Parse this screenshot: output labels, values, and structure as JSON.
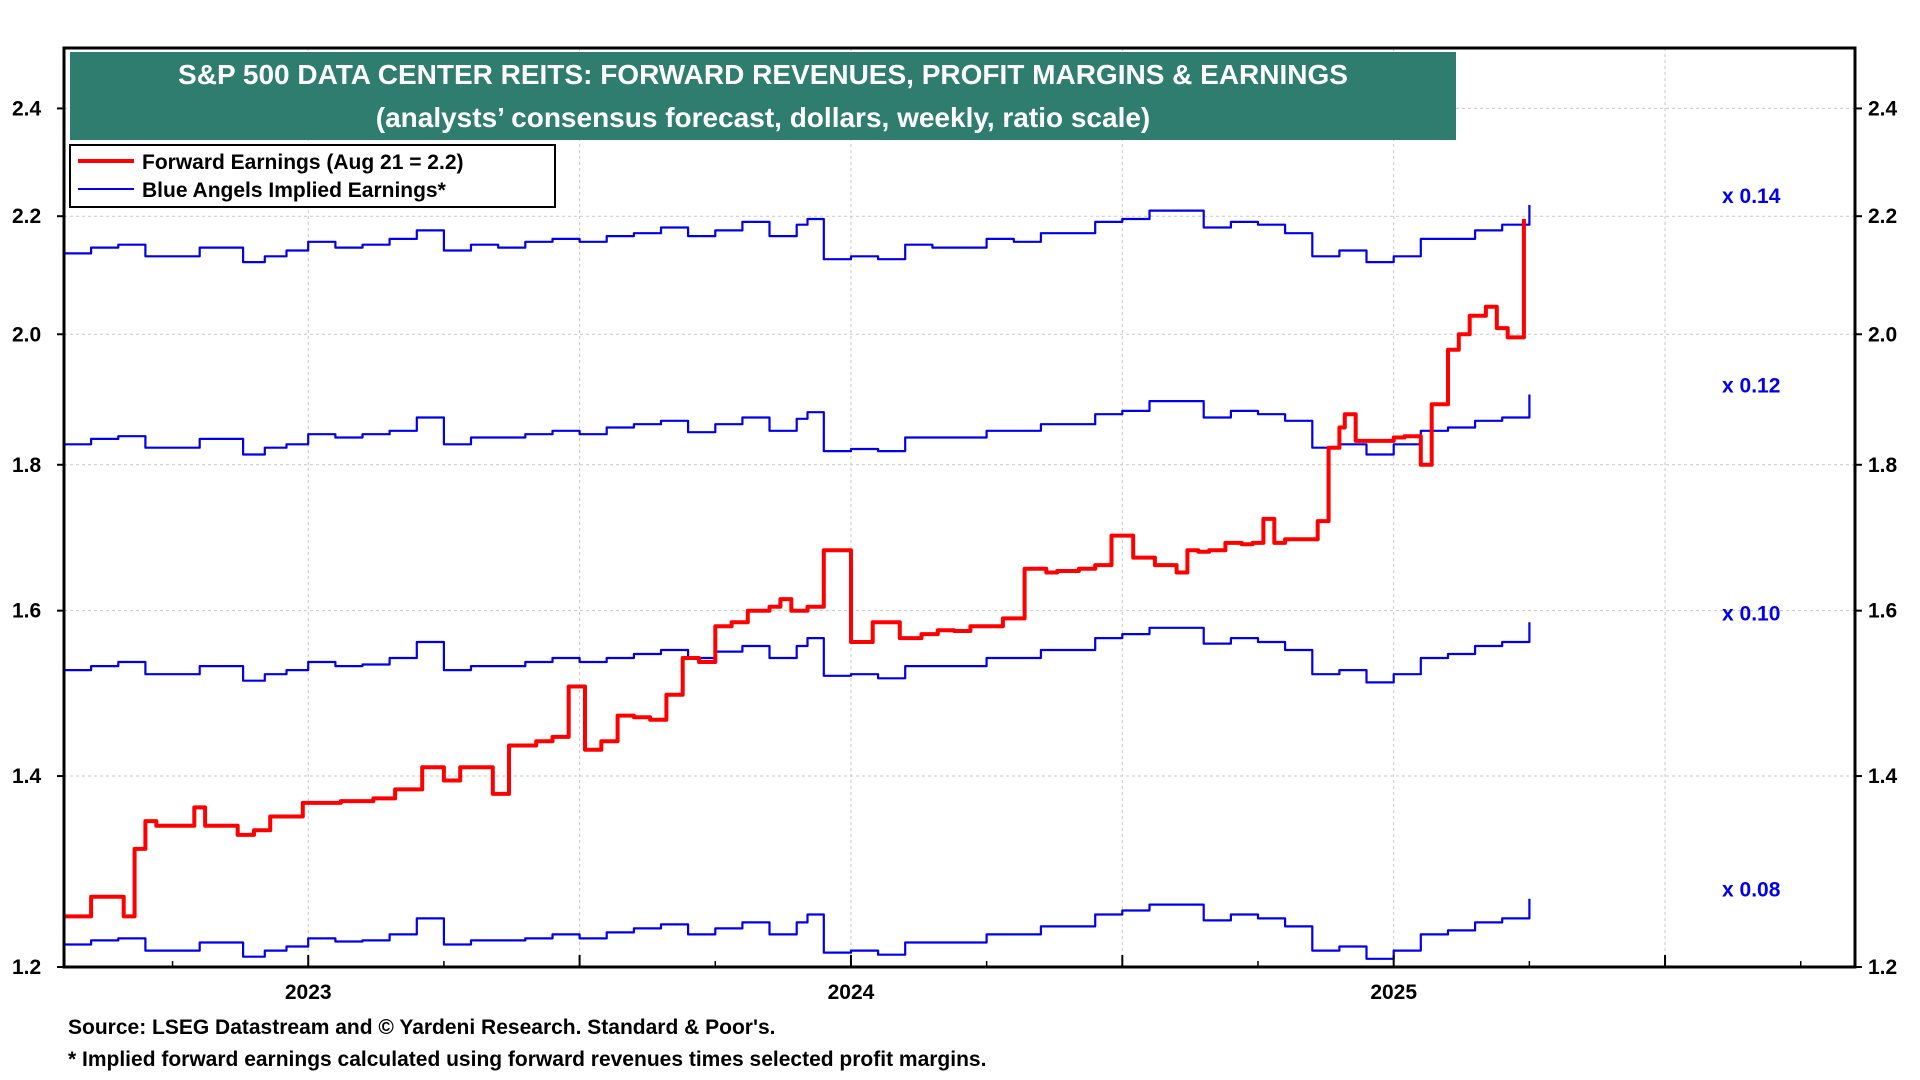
{
  "chart_data": {
    "type": "line",
    "title": "S&P 500 DATA CENTER REITS: FORWARD REVENUES, PROFIT MARGINS & EARNINGS",
    "subtitle": "(analysts’ consensus forecast, dollars, weekly, ratio scale)",
    "y_scale": "log",
    "ylim": [
      1.2,
      2.52
    ],
    "xlim": [
      2022.55,
      2025.85
    ],
    "y_ticks": [
      "1.2",
      "1.4",
      "1.6",
      "1.8",
      "2.0",
      "2.2",
      "2.4"
    ],
    "x_tick_labels": [
      "2023",
      "2024",
      "2025"
    ],
    "grid": true,
    "legend_position": "top-left",
    "legend": [
      {
        "label": "Forward Earnings (Aug 21 = 2.2)",
        "color": "#ff0000"
      },
      {
        "label": "Blue Angels Implied Earnings*",
        "color": "#0000ee"
      }
    ],
    "series": [
      {
        "name": "Forward Earnings (Aug 21 = 2.2)",
        "color": "#ff0000",
        "x": [
          2022.55,
          2022.58,
          2022.6,
          2022.63,
          2022.66,
          2022.68,
          2022.7,
          2022.72,
          2022.75,
          2022.79,
          2022.81,
          2022.83,
          2022.87,
          2022.9,
          2022.93,
          2022.96,
          2022.99,
          2023.02,
          2023.06,
          2023.12,
          2023.16,
          2023.21,
          2023.25,
          2023.28,
          2023.31,
          2023.34,
          2023.37,
          2023.39,
          2023.42,
          2023.45,
          2023.48,
          2023.51,
          2023.54,
          2023.57,
          2023.6,
          2023.63,
          2023.66,
          2023.69,
          2023.72,
          2023.75,
          2023.78,
          2023.81,
          2023.83,
          2023.85,
          2023.87,
          2023.89,
          2023.92,
          2023.95,
          2024.0,
          2024.04,
          2024.09,
          2024.13,
          2024.16,
          2024.19,
          2024.22,
          2024.28,
          2024.32,
          2024.36,
          2024.38,
          2024.42,
          2024.45,
          2024.48,
          2024.52,
          2024.56,
          2024.6,
          2024.62,
          2024.64,
          2024.66,
          2024.69,
          2024.72,
          2024.74,
          2024.76,
          2024.78,
          2024.8,
          2024.83,
          2024.86,
          2024.88,
          2024.9,
          2024.91,
          2024.93,
          2024.96,
          2025.0,
          2025.02,
          2025.05,
          2025.07,
          2025.1,
          2025.12,
          2025.14,
          2025.17,
          2025.19,
          2025.21,
          2025.24
        ],
        "values": [
          1.25,
          1.25,
          1.27,
          1.27,
          1.25,
          1.32,
          1.35,
          1.345,
          1.345,
          1.365,
          1.345,
          1.345,
          1.335,
          1.34,
          1.355,
          1.355,
          1.37,
          1.37,
          1.372,
          1.375,
          1.385,
          1.41,
          1.395,
          1.41,
          1.41,
          1.38,
          1.435,
          1.435,
          1.44,
          1.445,
          1.505,
          1.43,
          1.44,
          1.47,
          1.468,
          1.465,
          1.495,
          1.54,
          1.535,
          1.58,
          1.585,
          1.6,
          1.6,
          1.605,
          1.615,
          1.6,
          1.605,
          1.68,
          1.56,
          1.585,
          1.565,
          1.57,
          1.575,
          1.574,
          1.58,
          1.59,
          1.655,
          1.65,
          1.652,
          1.655,
          1.66,
          1.7,
          1.67,
          1.66,
          1.65,
          1.68,
          1.678,
          1.68,
          1.69,
          1.688,
          1.69,
          1.723,
          1.69,
          1.695,
          1.695,
          1.72,
          1.825,
          1.855,
          1.875,
          1.835,
          1.835,
          1.84,
          1.842,
          1.8,
          1.89,
          1.975,
          2.0,
          2.03,
          2.045,
          2.01,
          1.995,
          2.195
        ]
      },
      {
        "name": "x 0.14",
        "color": "#0000ee",
        "x": [
          2022.55,
          2022.6,
          2022.65,
          2022.7,
          2022.75,
          2022.8,
          2022.85,
          2022.88,
          2022.92,
          2022.96,
          2023.0,
          2023.05,
          2023.1,
          2023.15,
          2023.2,
          2023.25,
          2023.3,
          2023.35,
          2023.4,
          2023.45,
          2023.5,
          2023.55,
          2023.6,
          2023.65,
          2023.7,
          2023.75,
          2023.8,
          2023.85,
          2023.9,
          2023.92,
          2023.95,
          2024.0,
          2024.05,
          2024.1,
          2024.15,
          2024.2,
          2024.25,
          2024.3,
          2024.35,
          2024.4,
          2024.45,
          2024.5,
          2024.55,
          2024.6,
          2024.65,
          2024.7,
          2024.75,
          2024.8,
          2024.85,
          2024.9,
          2024.95,
          2025.0,
          2025.05,
          2025.1,
          2025.15,
          2025.2,
          2025.25
        ],
        "values": [
          2.135,
          2.145,
          2.15,
          2.13,
          2.13,
          2.145,
          2.145,
          2.12,
          2.13,
          2.14,
          2.155,
          2.145,
          2.15,
          2.16,
          2.175,
          2.14,
          2.15,
          2.145,
          2.155,
          2.16,
          2.155,
          2.165,
          2.17,
          2.18,
          2.165,
          2.175,
          2.19,
          2.165,
          2.185,
          2.195,
          2.125,
          2.13,
          2.125,
          2.15,
          2.145,
          2.145,
          2.16,
          2.155,
          2.17,
          2.17,
          2.19,
          2.195,
          2.21,
          2.21,
          2.18,
          2.19,
          2.185,
          2.17,
          2.13,
          2.14,
          2.12,
          2.13,
          2.16,
          2.16,
          2.175,
          2.185,
          2.22
        ]
      },
      {
        "name": "x 0.12",
        "color": "#0000ee",
        "x": [
          2022.55,
          2022.6,
          2022.65,
          2022.7,
          2022.75,
          2022.8,
          2022.85,
          2022.88,
          2022.92,
          2022.96,
          2023.0,
          2023.05,
          2023.1,
          2023.15,
          2023.2,
          2023.25,
          2023.3,
          2023.35,
          2023.4,
          2023.45,
          2023.5,
          2023.55,
          2023.6,
          2023.65,
          2023.7,
          2023.75,
          2023.8,
          2023.85,
          2023.9,
          2023.92,
          2023.95,
          2024.0,
          2024.05,
          2024.1,
          2024.15,
          2024.2,
          2024.25,
          2024.3,
          2024.35,
          2024.4,
          2024.45,
          2024.5,
          2024.55,
          2024.6,
          2024.65,
          2024.7,
          2024.75,
          2024.8,
          2024.85,
          2024.9,
          2024.95,
          2025.0,
          2025.05,
          2025.1,
          2025.15,
          2025.2,
          2025.25
        ],
        "values": [
          1.83,
          1.838,
          1.842,
          1.825,
          1.825,
          1.838,
          1.838,
          1.815,
          1.825,
          1.83,
          1.845,
          1.84,
          1.845,
          1.85,
          1.87,
          1.83,
          1.84,
          1.84,
          1.845,
          1.85,
          1.845,
          1.855,
          1.86,
          1.865,
          1.848,
          1.86,
          1.87,
          1.85,
          1.868,
          1.878,
          1.82,
          1.823,
          1.82,
          1.84,
          1.84,
          1.84,
          1.85,
          1.85,
          1.86,
          1.86,
          1.875,
          1.88,
          1.895,
          1.895,
          1.87,
          1.88,
          1.875,
          1.865,
          1.825,
          1.83,
          1.815,
          1.83,
          1.85,
          1.855,
          1.865,
          1.87,
          1.905
        ]
      },
      {
        "name": "x 0.10",
        "color": "#0000ee",
        "x": [
          2022.55,
          2022.6,
          2022.65,
          2022.7,
          2022.75,
          2022.8,
          2022.85,
          2022.88,
          2022.92,
          2022.96,
          2023.0,
          2023.05,
          2023.1,
          2023.15,
          2023.2,
          2023.25,
          2023.3,
          2023.35,
          2023.4,
          2023.45,
          2023.5,
          2023.55,
          2023.6,
          2023.65,
          2023.7,
          2023.75,
          2023.8,
          2023.85,
          2023.9,
          2023.92,
          2023.95,
          2024.0,
          2024.05,
          2024.1,
          2024.15,
          2024.2,
          2024.25,
          2024.3,
          2024.35,
          2024.4,
          2024.45,
          2024.5,
          2024.55,
          2024.6,
          2024.65,
          2024.7,
          2024.75,
          2024.8,
          2024.85,
          2024.9,
          2024.95,
          2025.0,
          2025.05,
          2025.1,
          2025.15,
          2025.2,
          2025.25
        ],
        "values": [
          1.525,
          1.53,
          1.535,
          1.52,
          1.52,
          1.53,
          1.53,
          1.512,
          1.52,
          1.525,
          1.535,
          1.53,
          1.532,
          1.54,
          1.56,
          1.525,
          1.53,
          1.53,
          1.535,
          1.54,
          1.535,
          1.54,
          1.545,
          1.55,
          1.54,
          1.548,
          1.555,
          1.54,
          1.555,
          1.565,
          1.518,
          1.52,
          1.515,
          1.53,
          1.53,
          1.53,
          1.54,
          1.54,
          1.55,
          1.55,
          1.565,
          1.57,
          1.578,
          1.578,
          1.558,
          1.565,
          1.56,
          1.55,
          1.52,
          1.525,
          1.51,
          1.52,
          1.54,
          1.545,
          1.555,
          1.56,
          1.585
        ]
      },
      {
        "name": "x 0.08",
        "color": "#0000ee",
        "x": [
          2022.55,
          2022.6,
          2022.65,
          2022.7,
          2022.75,
          2022.8,
          2022.85,
          2022.88,
          2022.92,
          2022.96,
          2023.0,
          2023.05,
          2023.1,
          2023.15,
          2023.2,
          2023.25,
          2023.3,
          2023.35,
          2023.4,
          2023.45,
          2023.5,
          2023.55,
          2023.6,
          2023.65,
          2023.7,
          2023.75,
          2023.8,
          2023.85,
          2023.9,
          2023.92,
          2023.95,
          2024.0,
          2024.05,
          2024.1,
          2024.15,
          2024.2,
          2024.25,
          2024.3,
          2024.35,
          2024.4,
          2024.45,
          2024.5,
          2024.55,
          2024.6,
          2024.65,
          2024.7,
          2024.75,
          2024.8,
          2024.85,
          2024.9,
          2024.95,
          2025.0,
          2025.05,
          2025.1,
          2025.15,
          2025.2,
          2025.25
        ],
        "values": [
          1.222,
          1.226,
          1.228,
          1.216,
          1.216,
          1.224,
          1.224,
          1.21,
          1.216,
          1.22,
          1.228,
          1.225,
          1.226,
          1.232,
          1.248,
          1.222,
          1.226,
          1.226,
          1.228,
          1.232,
          1.228,
          1.234,
          1.238,
          1.242,
          1.232,
          1.238,
          1.244,
          1.232,
          1.244,
          1.252,
          1.214,
          1.216,
          1.212,
          1.224,
          1.224,
          1.224,
          1.232,
          1.232,
          1.24,
          1.24,
          1.252,
          1.256,
          1.262,
          1.262,
          1.246,
          1.252,
          1.248,
          1.24,
          1.216,
          1.22,
          1.208,
          1.216,
          1.232,
          1.236,
          1.244,
          1.248,
          1.268
        ]
      }
    ],
    "annotations": [
      "x 0.14",
      "x 0.12",
      "x 0.10",
      "x 0.08"
    ]
  },
  "footer": {
    "source": "Source: LSEG Datastream and © Yardeni Research. Standard & Poor's.",
    "note": "* Implied forward earnings calculated using forward revenues times selected profit margins."
  }
}
